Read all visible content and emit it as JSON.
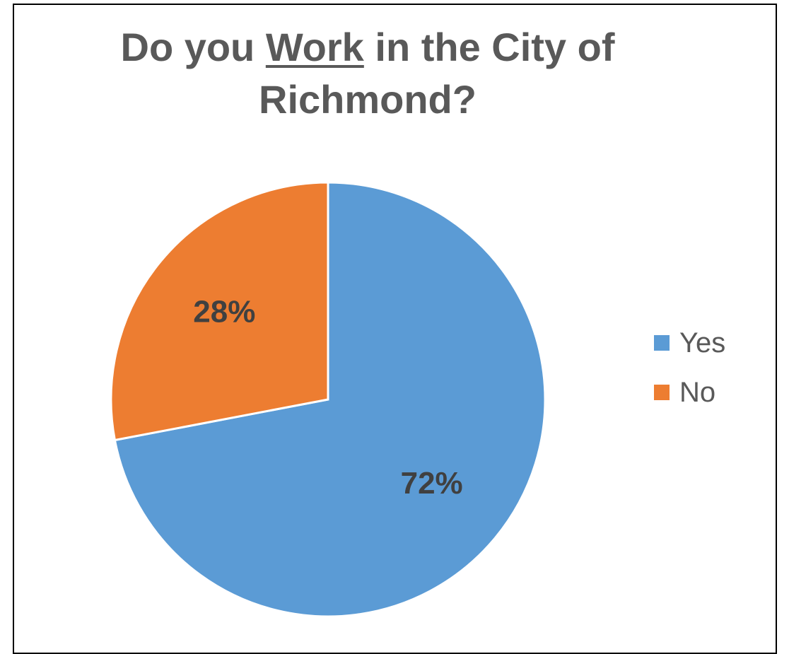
{
  "chart_data": {
    "type": "pie",
    "title_parts": [
      "Do you ",
      "Work",
      " in the City of",
      "Richmond?"
    ],
    "categories": [
      "Yes",
      "No"
    ],
    "values": [
      72,
      28
    ],
    "data_labels": [
      "72%",
      "28%"
    ],
    "colors": [
      "#5B9BD5",
      "#ED7D31"
    ],
    "legend_position": "right"
  }
}
